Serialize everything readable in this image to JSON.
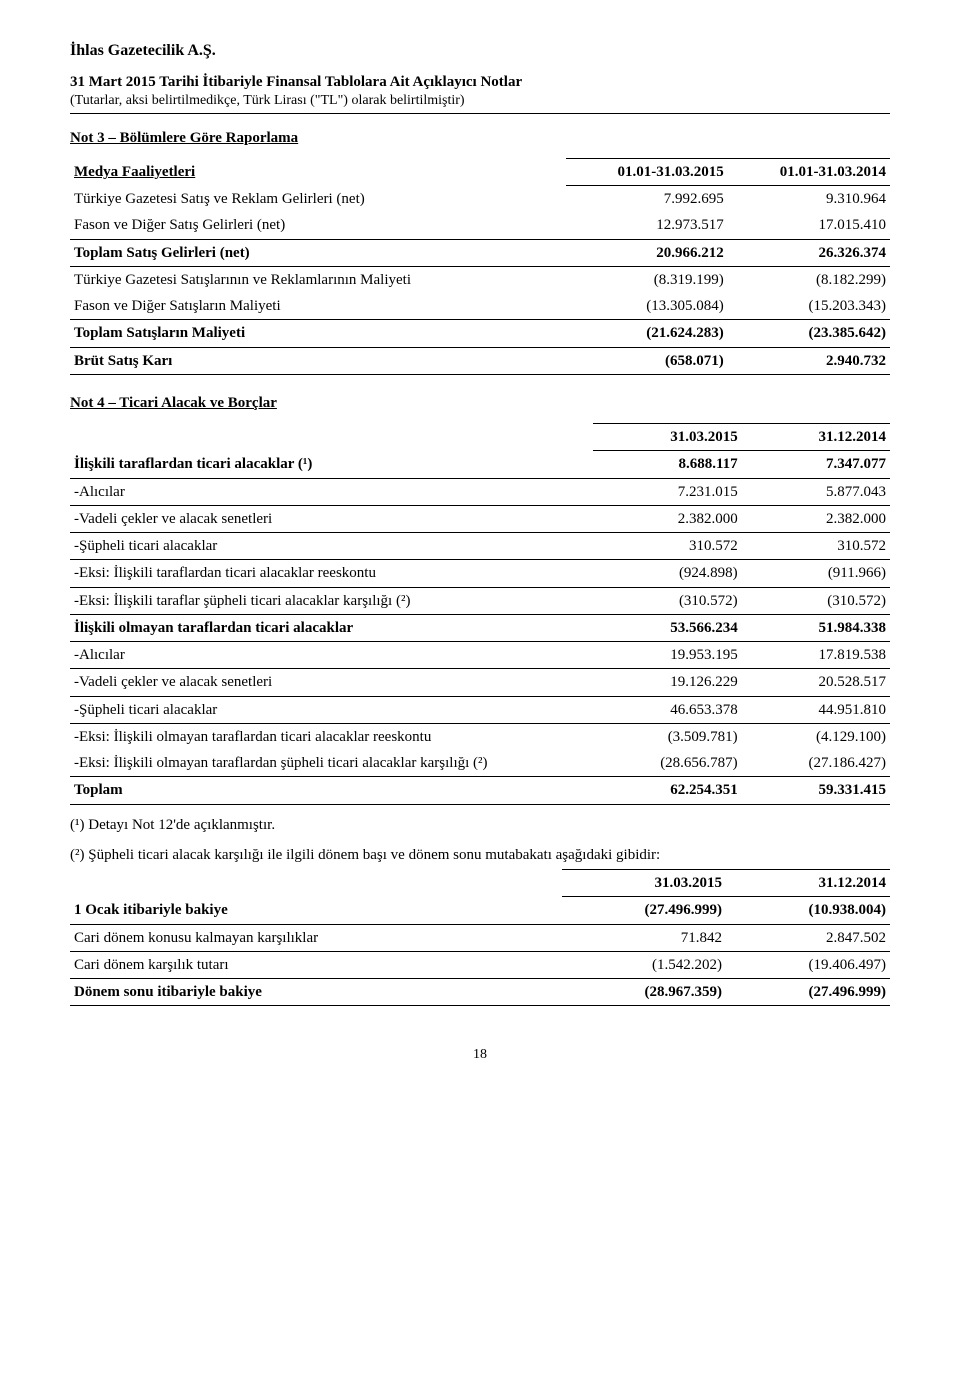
{
  "header": {
    "company": "İhlas Gazetecilik A.Ş.",
    "notesTitle": "31 Mart 2015 Tarihi İtibariyle Finansal Tablolara Ait Açıklayıcı Notlar",
    "notesSub": "(Tutarlar, aksi belirtilmedikçe, Türk Lirası (\"TL\") olarak belirtilmiştir)"
  },
  "not3": {
    "title": "Not 3 – Bölümlere Göre Raporlama",
    "headerRow": {
      "label": "Medya Faaliyetleri",
      "c1": "01.01-31.03.2015",
      "c2": "01.01-31.03.2014"
    },
    "rows": [
      {
        "label": "Türkiye Gazetesi Satış ve Reklam Gelirleri (net)",
        "c1": "7.992.695",
        "c2": "9.310.964",
        "bb": false
      },
      {
        "label": "Fason ve Diğer Satış Gelirleri (net)",
        "c1": "12.973.517",
        "c2": "17.015.410",
        "bb": true
      },
      {
        "label": "Toplam Satış Gelirleri (net)",
        "c1": "20.966.212",
        "c2": "26.326.374",
        "bold": true,
        "bb": true
      },
      {
        "label": "Türkiye Gazetesi Satışlarının ve Reklamlarının Maliyeti",
        "c1": "(8.319.199)",
        "c2": "(8.182.299)",
        "bb": false
      },
      {
        "label": "Fason ve Diğer Satışların Maliyeti",
        "c1": "(13.305.084)",
        "c2": "(15.203.343)",
        "bb": true
      },
      {
        "label": "Toplam Satışların Maliyeti",
        "c1": "(21.624.283)",
        "c2": "(23.385.642)",
        "bold": true,
        "bb": true
      },
      {
        "label": "Brüt Satış Karı",
        "c1": "(658.071)",
        "c2": "2.940.732",
        "bold": true,
        "bb": true
      }
    ]
  },
  "not4": {
    "title": "Not 4 – Ticari Alacak ve Borçlar",
    "headerRow": {
      "c1": "31.03.2015",
      "c2": "31.12.2014"
    },
    "rows": [
      {
        "label": "İlişkili taraflardan ticari alacaklar (¹)",
        "c1": "8.688.117",
        "c2": "7.347.077",
        "bold": true,
        "bb": true
      },
      {
        "label": "-Alıcılar",
        "c1": "7.231.015",
        "c2": "5.877.043",
        "bb": true
      },
      {
        "label": "-Vadeli çekler ve alacak senetleri",
        "c1": "2.382.000",
        "c2": "2.382.000",
        "bb": true
      },
      {
        "label": "-Şüpheli ticari alacaklar",
        "c1": "310.572",
        "c2": "310.572",
        "bb": true
      },
      {
        "label": "-Eksi: İlişkili taraflardan ticari alacaklar reeskontu",
        "c1": "(924.898)",
        "c2": "(911.966)",
        "bb": true
      },
      {
        "label": "-Eksi: İlişkili taraflar şüpheli ticari alacaklar karşılığı (²)",
        "c1": "(310.572)",
        "c2": "(310.572)",
        "bb": true
      },
      {
        "label": "İlişkili olmayan taraflardan ticari alacaklar",
        "c1": "53.566.234",
        "c2": "51.984.338",
        "bold": true,
        "bb": true
      },
      {
        "label": "-Alıcılar",
        "c1": "19.953.195",
        "c2": "17.819.538",
        "bb": true
      },
      {
        "label": "-Vadeli çekler ve alacak senetleri",
        "c1": "19.126.229",
        "c2": "20.528.517",
        "bb": true
      },
      {
        "label": "-Şüpheli ticari alacaklar",
        "c1": "46.653.378",
        "c2": "44.951.810",
        "bb": true
      },
      {
        "label": "-Eksi: İlişkili olmayan taraflardan ticari alacaklar reeskontu",
        "c1": "(3.509.781)",
        "c2": "(4.129.100)",
        "bb": false
      },
      {
        "label": "-Eksi: İlişkili olmayan taraflardan şüpheli ticari alacaklar karşılığı (²)",
        "c1": "(28.656.787)",
        "c2": "(27.186.427)",
        "bb": true
      },
      {
        "label": "Toplam",
        "c1": "62.254.351",
        "c2": "59.331.415",
        "bold": true,
        "bb": true
      }
    ],
    "footnote1": "(¹) Detayı Not 12'de açıklanmıştır.",
    "footnote2": "(²) Şüpheli ticari alacak karşılığı ile ilgili dönem başı ve dönem sonu mutabakatı aşağıdaki gibidir:",
    "recon": {
      "headerRow": {
        "c1": "31.03.2015",
        "c2": "31.12.2014"
      },
      "rows": [
        {
          "label": "1 Ocak itibariyle bakiye",
          "c1": "(27.496.999)",
          "c2": "(10.938.004)",
          "bold": true,
          "bb": true
        },
        {
          "label": "Cari dönem konusu kalmayan karşılıklar",
          "c1": "71.842",
          "c2": "2.847.502",
          "bb": true
        },
        {
          "label": "Cari dönem karşılık tutarı",
          "c1": "(1.542.202)",
          "c2": "(19.406.497)",
          "bb": true
        },
        {
          "label": "Dönem sonu itibariyle bakiye",
          "c1": "(28.967.359)",
          "c2": "(27.496.999)",
          "bold": true,
          "bb": true
        }
      ]
    }
  },
  "pageNumber": "18"
}
